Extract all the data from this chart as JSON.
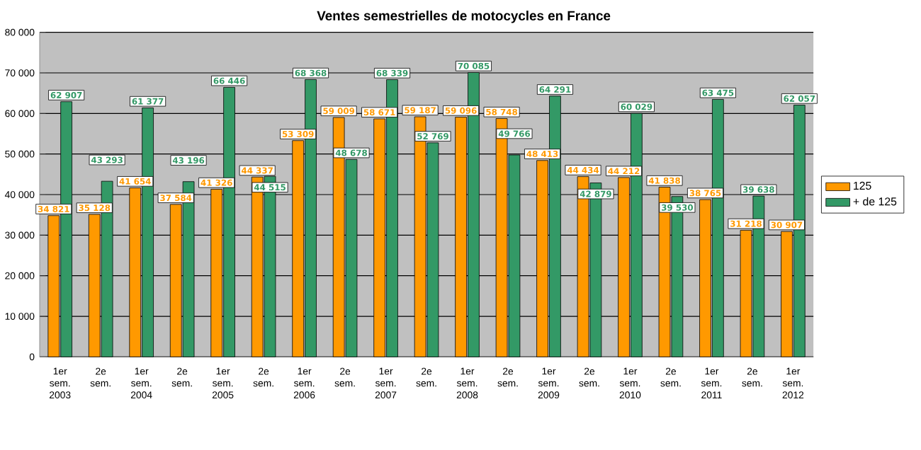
{
  "chart_data": {
    "type": "bar",
    "title": "Ventes semestrielles de motocycles en France",
    "categories": [
      "1er sem. 2003",
      "2e sem.",
      "1er sem. 2004",
      "2e sem.",
      "1er sem. 2005",
      "2e sem.",
      "1er sem. 2006",
      "2e sem.",
      "1er sem. 2007",
      "2e sem.",
      "1er sem. 2008",
      "2e sem.",
      "1er sem. 2009",
      "2e sem.",
      "1er sem. 2010",
      "2e sem.",
      "1er sem. 2011",
      "2e sem.",
      "1er sem. 2012"
    ],
    "series": [
      {
        "name": "125",
        "color": "#ff9900",
        "values": [
          34821,
          35128,
          41654,
          37584,
          41326,
          44337,
          53309,
          59009,
          58671,
          59187,
          59096,
          58748,
          48413,
          44434,
          44212,
          41838,
          38765,
          31218,
          30907
        ],
        "value_labels": [
          "34 821",
          "35 128",
          "41 654",
          "37 584",
          "41 326",
          "44 337",
          "53 309",
          "59 009",
          "58 671",
          "59 187",
          "59 096",
          "58 748",
          "48 413",
          "44 434",
          "44 212",
          "41 838",
          "38 765",
          "31 218",
          "30 907"
        ]
      },
      {
        "name": "+ de 125",
        "color": "#339966",
        "values": [
          62907,
          43293,
          61377,
          43196,
          66446,
          44515,
          68368,
          48678,
          68339,
          52769,
          70085,
          49766,
          64291,
          42879,
          60029,
          39530,
          63475,
          39638,
          62057
        ],
        "value_labels": [
          "62 907",
          "43 293",
          "61 377",
          "43 196",
          "66 446",
          "44 515",
          "68 368",
          "48 678",
          "68 339",
          "52 769",
          "70 085",
          "49 766",
          "64 291",
          "42 879",
          "60 029",
          "39 530",
          "63 475",
          "39 638",
          "62 057"
        ]
      }
    ],
    "ylim": [
      0,
      80000
    ],
    "yticks": [
      0,
      {
        "value": 10000,
        "label": "10 000"
      },
      {
        "value": 20000,
        "label": "20 000"
      },
      {
        "value": 30000,
        "label": "30 000"
      },
      {
        "value": 40000,
        "label": "40 000"
      },
      {
        "value": 50000,
        "label": "50 000"
      },
      {
        "value": 60000,
        "label": "60 000"
      },
      {
        "value": 70000,
        "label": "70 000"
      },
      {
        "value": 80000,
        "label": "80 000"
      }
    ],
    "grid": "y",
    "legend": "right"
  }
}
